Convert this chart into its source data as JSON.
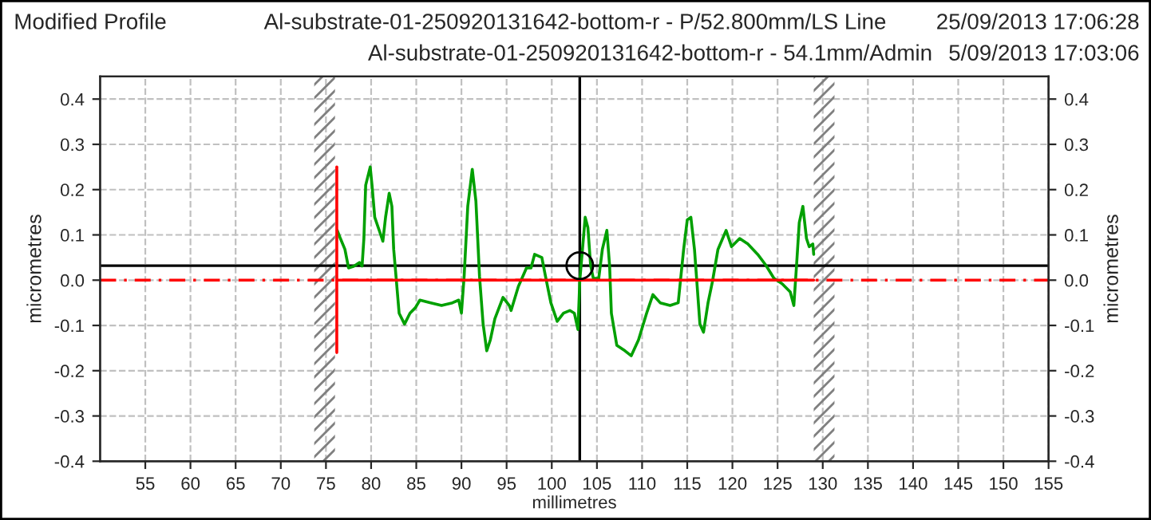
{
  "chart_data": {
    "type": "line",
    "title": "Modified Profile",
    "subtitle": "Al-substrate-01-250920131642-bottom-r - P/52.800mm/LS Line",
    "annotations": [
      "25/09/2013 17:06:28",
      "Al-substrate-01-250920131642-bottom-r - 54.1mm/Admin",
      "5/09/2013 17:03:06"
    ],
    "xlabel": "millimetres",
    "ylabel": "micrometres",
    "y2label": "micrometres",
    "xlim": [
      50,
      155
    ],
    "xticks": [
      55,
      60,
      65,
      70,
      75,
      80,
      85,
      90,
      95,
      100,
      105,
      110,
      115,
      120,
      125,
      130,
      135,
      140,
      145,
      150,
      155
    ],
    "ylim": [
      -0.4,
      0.45
    ],
    "yticks": [
      -0.4,
      -0.3,
      -0.2,
      -0.1,
      {
        "value": 0,
        "label": "0.0"
      },
      0.1,
      0.2,
      0.3,
      0.4
    ],
    "y2lim": [
      -0.4,
      0.45
    ],
    "y2ticks": [
      -0.4,
      -0.3,
      -0.2,
      -0.1,
      {
        "value": 0,
        "label": "0.0"
      },
      0.1,
      0.2,
      0.3,
      0.4
    ],
    "grid": true,
    "legend": false,
    "marker": "none",
    "line_style": "solid",
    "series": [
      {
        "color": "#00a000",
        "x": [
          76.25,
          76.6,
          77.1,
          77.5,
          78.1,
          78.7,
          79.0,
          79.2,
          79.4,
          79.9,
          80.1,
          80.4,
          81.0,
          81.3,
          81.6,
          82.0,
          82.3,
          82.5,
          82.8,
          83.1,
          83.7,
          84.3,
          84.9,
          85.4,
          86.6,
          87.8,
          89.0,
          89.7,
          90.0,
          90.3,
          90.7,
          91.2,
          91.6,
          92.0,
          92.4,
          92.8,
          93.2,
          93.7,
          94.6,
          95.3,
          95.5,
          96.3,
          97.2,
          97.7,
          98.1,
          98.9,
          99.3,
          99.9,
          100.6,
          101.3,
          102.0,
          102.5,
          102.9,
          103.1,
          103.4,
          103.7,
          104.0,
          104.3,
          104.6,
          105.2,
          105.6,
          106.1,
          106.4,
          106.6,
          107.2,
          108.1,
          108.8,
          109.6,
          110.5,
          111.2,
          112.0,
          113.1,
          114.0,
          114.6,
          115.0,
          115.4,
          115.8,
          116.1,
          116.4,
          116.8,
          117.3,
          117.8,
          118.4,
          119.3,
          119.9,
          120.8,
          121.7,
          122.8,
          123.7,
          124.6,
          125.5,
          126.4,
          126.8,
          127.1,
          127.4,
          127.8,
          128.2,
          128.5,
          128.9,
          129.0
        ],
        "values": [
          0.11,
          0.092,
          0.068,
          0.027,
          0.031,
          0.039,
          0.031,
          0.092,
          0.21,
          0.25,
          0.21,
          0.139,
          0.104,
          0.086,
          0.139,
          0.192,
          0.163,
          0.068,
          -0.002,
          -0.073,
          -0.097,
          -0.073,
          -0.061,
          -0.044,
          -0.05,
          -0.056,
          -0.05,
          -0.044,
          -0.073,
          0.009,
          0.163,
          0.245,
          0.175,
          0.009,
          -0.097,
          -0.156,
          -0.132,
          -0.085,
          -0.038,
          -0.056,
          -0.067,
          -0.014,
          0.027,
          0.027,
          0.057,
          0.05,
          0.009,
          -0.05,
          -0.091,
          -0.073,
          -0.067,
          -0.073,
          -0.109,
          -0.002,
          0.068,
          0.139,
          0.116,
          0.033,
          0.004,
          0.004,
          0.068,
          0.11,
          0.033,
          -0.073,
          -0.144,
          -0.156,
          -0.167,
          -0.132,
          -0.073,
          -0.032,
          -0.05,
          -0.056,
          -0.05,
          0.068,
          0.133,
          0.139,
          0.068,
          -0.014,
          -0.097,
          -0.115,
          -0.05,
          -0.002,
          0.068,
          0.11,
          0.074,
          0.092,
          0.08,
          0.057,
          0.033,
          0.004,
          -0.008,
          -0.026,
          -0.056,
          0.033,
          0.127,
          0.163,
          0.092,
          0.074,
          0.08,
          0.057
        ]
      },
      {
        "color": "#ff0000",
        "x": [
          76.2,
          76.2
        ],
        "values": [
          0.25,
          -0.16
        ]
      },
      {
        "color": "#ff0000",
        "x": [
          76.2,
          129.0
        ],
        "values": [
          0.0,
          0.0
        ]
      }
    ],
    "ref_lines": [
      {
        "axis": "y",
        "value": 0.0,
        "color": "#ff0000",
        "line_style": "dashed"
      },
      {
        "axis": "y",
        "value": 0.032,
        "color": "#000000",
        "line_style": "solid"
      },
      {
        "axis": "x",
        "value": 103.1,
        "color": "#000000",
        "line_style": "solid"
      }
    ],
    "bands": [
      {
        "axis": "x",
        "from": 73.7,
        "to": 76.0,
        "color": "#808080"
      },
      {
        "axis": "x",
        "from": 129.0,
        "to": 131.3,
        "color": "#808080"
      }
    ]
  }
}
